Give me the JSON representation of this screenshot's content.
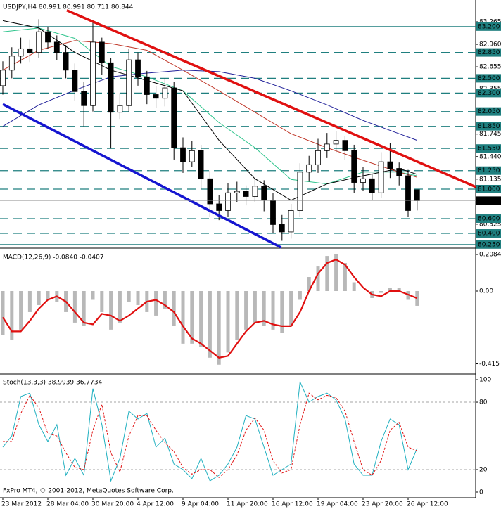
{
  "chart_data": [
    {
      "type": "candlestick",
      "title": "USDJPY,H4  80.991 80.991 80.711 80.844",
      "categories": [
        "23 Mar 2012",
        null,
        null,
        null,
        null,
        "28 Mar 04:00",
        null,
        null,
        null,
        null,
        "30 Mar 20:00",
        null,
        null,
        null,
        null,
        "4 Apr 12:00",
        null,
        null,
        null,
        null,
        "9 Apr 04:00",
        null,
        null,
        null,
        null,
        "11 Apr 20:00",
        null,
        null,
        null,
        null,
        "16 Apr 12:00",
        null,
        null,
        null,
        null,
        "19 Apr 04:00",
        null,
        null,
        null,
        null,
        "23 Apr 20:00",
        null,
        null,
        null,
        null,
        "26 Apr 12:00",
        null
      ],
      "open": [
        82.4,
        82.61,
        82.8,
        82.9,
        82.85,
        83.13,
        82.99,
        82.85,
        82.61,
        82.32,
        82.13,
        82.99,
        82.71,
        82.04,
        82.13,
        82.75,
        82.52,
        82.28,
        82.23,
        82.37,
        81.56,
        81.37,
        81.52,
        81.14,
        80.8,
        80.71,
        80.95,
        80.97,
        80.9,
        81.04,
        80.85,
        80.52,
        80.42,
        80.71,
        81.23,
        81.33,
        81.52,
        81.61,
        81.66,
        81.52,
        81.09,
        81.14,
        80.95,
        81.37,
        81.28,
        81.18,
        80.991
      ],
      "high": [
        82.73,
        82.92,
        83.05,
        83.02,
        83.3,
        83.2,
        83.08,
        82.95,
        82.7,
        82.45,
        83.28,
        83.05,
        82.78,
        82.3,
        82.9,
        82.85,
        82.6,
        82.4,
        82.5,
        82.45,
        81.7,
        81.65,
        81.6,
        81.25,
        80.92,
        81.08,
        81.1,
        81.05,
        81.15,
        81.12,
        80.95,
        80.65,
        80.8,
        81.35,
        81.45,
        81.68,
        81.76,
        81.78,
        81.72,
        81.6,
        81.3,
        81.2,
        81.5,
        81.62,
        81.36,
        81.26,
        80.991
      ],
      "low": [
        82.28,
        82.5,
        82.7,
        82.72,
        82.78,
        82.9,
        82.75,
        82.5,
        82.2,
        81.85,
        82.05,
        82.55,
        81.55,
        81.95,
        82.05,
        82.4,
        82.15,
        82.1,
        82.12,
        81.4,
        81.22,
        81.3,
        81.0,
        80.62,
        80.58,
        80.62,
        80.82,
        80.78,
        80.82,
        80.7,
        80.4,
        80.3,
        80.33,
        80.62,
        81.1,
        81.22,
        81.42,
        81.5,
        81.4,
        80.95,
        80.98,
        80.85,
        80.88,
        81.15,
        81.05,
        80.62,
        80.711
      ],
      "close": [
        82.61,
        82.8,
        82.9,
        82.85,
        83.13,
        82.99,
        82.85,
        82.61,
        82.32,
        82.13,
        82.99,
        82.71,
        82.04,
        82.13,
        82.75,
        82.52,
        82.28,
        82.23,
        82.37,
        81.56,
        81.37,
        81.52,
        81.14,
        80.8,
        80.71,
        80.95,
        80.97,
        80.9,
        81.04,
        80.85,
        80.52,
        80.42,
        80.71,
        81.23,
        81.33,
        81.52,
        81.61,
        81.66,
        81.52,
        81.09,
        81.14,
        80.95,
        81.37,
        81.28,
        81.18,
        80.71,
        80.844
      ],
      "up_color": "#ffffff",
      "down_color": "#000000",
      "xlim": [
        -0.3125,
        52.5
      ],
      "ylim": [
        80.21,
        83.56
      ],
      "yticks": [
        {
          "value": 83.265,
          "label": "83.265"
        },
        {
          "value": 82.96,
          "label": "82.960"
        },
        {
          "value": 82.655,
          "label": "82.655"
        },
        {
          "value": 82.355,
          "label": "82.355"
        },
        {
          "value": 81.745,
          "label": "81.745"
        },
        {
          "value": 81.44,
          "label": "81.440"
        },
        {
          "value": 81.135,
          "label": "81.135"
        },
        {
          "value": 80.525,
          "label": "80.525"
        }
      ],
      "levels": [
        {
          "value": 83.2,
          "label": "83.200"
        },
        {
          "value": 82.85,
          "label": "82.850"
        },
        {
          "value": 82.5,
          "label": "82.500"
        },
        {
          "value": 82.3,
          "label": "82.300"
        },
        {
          "value": 82.05,
          "label": "82.050"
        },
        {
          "value": 81.85,
          "label": "81.850"
        },
        {
          "value": 81.55,
          "label": "81.550"
        },
        {
          "value": 81.25,
          "label": "81.250"
        },
        {
          "value": 81.0,
          "label": "81.000"
        },
        {
          "value": 80.6,
          "label": "80.600"
        },
        {
          "value": 80.4,
          "label": "80.400"
        },
        {
          "value": 80.25,
          "label": "80.250"
        }
      ],
      "solid_levels": [
        83.2,
        80.25
      ],
      "level_color": "#1f7f7f",
      "current": {
        "value": 80.844,
        "label": "80.844"
      },
      "moving_averages": [
        {
          "color": "#2ec48c",
          "x": [
            0,
            4,
            8,
            12,
            16,
            20,
            24,
            28,
            32,
            36,
            40,
            44,
            46
          ],
          "values": [
            83.13,
            83.18,
            83.04,
            82.66,
            82.52,
            82.33,
            81.9,
            81.56,
            81.13,
            81.07,
            81.23,
            81.23,
            81.18
          ]
        },
        {
          "color": "#000000",
          "x": [
            0,
            4,
            8,
            12,
            16,
            20,
            24,
            28,
            32,
            36,
            40,
            44,
            46
          ],
          "values": [
            83.28,
            83.18,
            82.85,
            82.61,
            82.47,
            82.33,
            81.66,
            81.14,
            80.85,
            81.07,
            81.18,
            81.28,
            81.2
          ]
        },
        {
          "color": "#c0392b",
          "x": [
            0,
            4,
            8,
            12,
            16,
            20,
            24,
            28,
            32,
            36,
            40,
            44,
            46
          ],
          "values": [
            82.61,
            82.88,
            83.01,
            82.97,
            82.88,
            82.61,
            82.33,
            82.04,
            81.75,
            81.56,
            81.39,
            81.23,
            81.16
          ]
        },
        {
          "color": "#22229a",
          "x": [
            0,
            4,
            8,
            12,
            16,
            20,
            24,
            28,
            32,
            36,
            40,
            44,
            46
          ],
          "values": [
            81.85,
            82.14,
            82.34,
            82.52,
            82.57,
            82.61,
            82.59,
            82.5,
            82.33,
            82.14,
            81.93,
            81.75,
            81.66
          ]
        }
      ],
      "trendlines": [
        {
          "color": "#e01010",
          "x": [
            7.1,
            52.5
          ],
          "values": [
            83.42,
            81.03
          ]
        },
        {
          "color": "#1515d0",
          "x": [
            0,
            30.9
          ],
          "values": [
            82.15,
            80.21
          ]
        }
      ]
    },
    {
      "type": "macd",
      "title": "MACD(12,26,9) -0.0840 -0.0407",
      "color": "#b8b8b8",
      "values": [
        -0.25,
        -0.28,
        -0.22,
        -0.12,
        -0.08,
        -0.05,
        -0.06,
        -0.12,
        -0.18,
        -0.2,
        -0.05,
        -0.12,
        -0.22,
        -0.18,
        -0.06,
        -0.08,
        -0.12,
        -0.14,
        -0.1,
        -0.2,
        -0.3,
        -0.3,
        -0.32,
        -0.38,
        -0.42,
        -0.35,
        -0.28,
        -0.22,
        -0.18,
        -0.2,
        -0.22,
        -0.24,
        -0.2,
        -0.05,
        0.08,
        0.14,
        0.2,
        0.21,
        0.16,
        0.05,
        0.0,
        -0.04,
        -0.01,
        0.02,
        0.02,
        -0.05,
        -0.084
      ],
      "signal": {
        "color": "#e01010",
        "values": [
          -0.15,
          -0.23,
          -0.23,
          -0.17,
          -0.1,
          -0.05,
          -0.03,
          -0.06,
          -0.12,
          -0.18,
          -0.19,
          -0.13,
          -0.14,
          -0.17,
          -0.14,
          -0.1,
          -0.06,
          -0.05,
          -0.08,
          -0.12,
          -0.2,
          -0.27,
          -0.3,
          -0.34,
          -0.38,
          -0.37,
          -0.3,
          -0.23,
          -0.18,
          -0.17,
          -0.19,
          -0.2,
          -0.2,
          -0.12,
          0.0,
          0.1,
          0.16,
          0.18,
          0.15,
          0.08,
          0.02,
          -0.02,
          -0.03,
          0.0,
          0.0,
          -0.02,
          -0.0407
        ]
      },
      "ylim": [
        -0.469,
        0.2405
      ],
      "yticks": [
        0.2084,
        {
          "value": 0,
          "label": "0.00"
        },
        -0.415
      ]
    },
    {
      "type": "stochastic",
      "title": "Stoch(13,3,3) 38.9939 36.7734",
      "series": [
        {
          "color": "#20b0c0",
          "style": "solid",
          "values": [
            40,
            50,
            85,
            88,
            60,
            45,
            60,
            15,
            30,
            15,
            92,
            60,
            10,
            30,
            72,
            65,
            70,
            40,
            48,
            25,
            20,
            12,
            30,
            10,
            15,
            25,
            40,
            68,
            65,
            40,
            15,
            20,
            25,
            98,
            80,
            85,
            88,
            82,
            65,
            25,
            15,
            15,
            45,
            65,
            60,
            20,
            38.9939
          ]
        },
        {
          "color": "#e01010",
          "style": "dashed",
          "values": [
            45,
            45,
            70,
            86,
            75,
            52,
            50,
            35,
            22,
            20,
            55,
            78,
            35,
            18,
            50,
            68,
            68,
            55,
            44,
            36,
            22,
            16,
            20,
            20,
            13,
            20,
            33,
            55,
            66,
            55,
            28,
            17,
            20,
            60,
            88,
            82,
            86,
            84,
            72,
            45,
            20,
            15,
            28,
            55,
            62,
            40,
            36.7734
          ]
        }
      ],
      "ylim": [
        -5,
        104.4
      ],
      "yticks": [
        100,
        80,
        20,
        0
      ],
      "levels": [
        80,
        20
      ]
    }
  ],
  "footer": "FxPro MT4, © 2001-2012, MetaQuotes Software Corp."
}
